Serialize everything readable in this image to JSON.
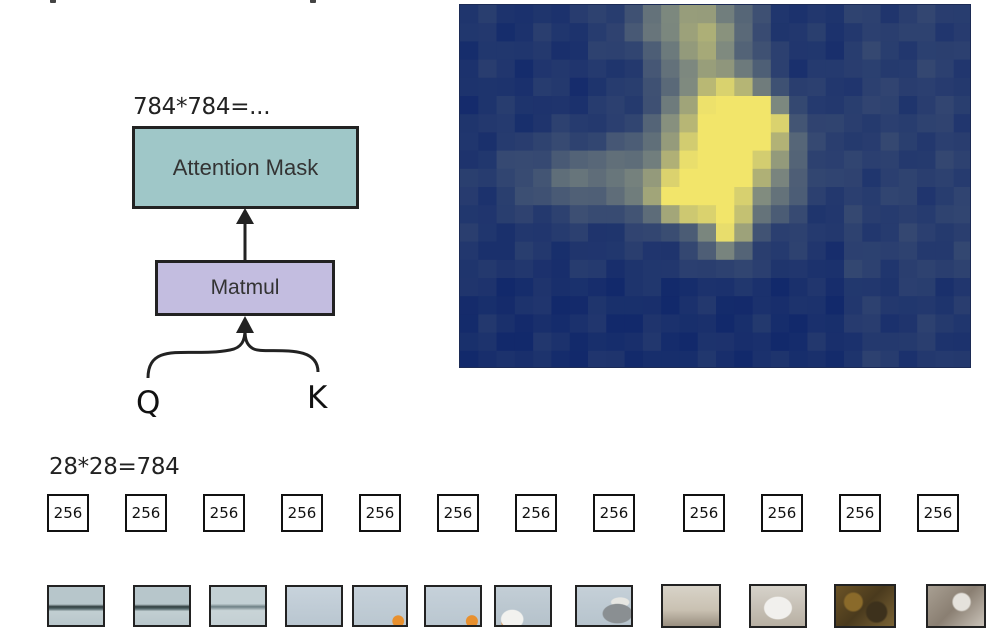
{
  "diagram": {
    "mask_size_label": "784*784=...",
    "attention_mask_label": "Attention Mask",
    "matmul_label": "Matmul",
    "q_label": "Q",
    "k_label": "K",
    "token_count_label": "28*28=784",
    "token_dim": "256",
    "token_count": 12
  },
  "colors": {
    "attention_mask_fill": "#9fc7c8",
    "matmul_fill": "#c3bde0",
    "heat_low": "#12296b",
    "heat_mid": "#7f8a7f",
    "heat_high": "#f2e56a"
  },
  "heatmap": {
    "description": "attention heatmap over image patches",
    "grid_cols": 28,
    "grid_rows": 20
  },
  "patches": [
    {
      "name": "patch-1",
      "tone": "water-dark-stripe"
    },
    {
      "name": "patch-2",
      "tone": "water-dark-stripe"
    },
    {
      "name": "patch-3",
      "tone": "water-stripe"
    },
    {
      "name": "patch-4",
      "tone": "sky"
    },
    {
      "name": "patch-5",
      "tone": "sky-orange"
    },
    {
      "name": "patch-6",
      "tone": "sky-orange"
    },
    {
      "name": "patch-7",
      "tone": "bird-head"
    },
    {
      "name": "patch-8",
      "tone": "bird-body"
    },
    {
      "name": "patch-9",
      "tone": "rock-light"
    },
    {
      "name": "patch-10",
      "tone": "bird-white"
    },
    {
      "name": "patch-11",
      "tone": "rock-brown"
    },
    {
      "name": "patch-12",
      "tone": "rock-grey"
    }
  ]
}
